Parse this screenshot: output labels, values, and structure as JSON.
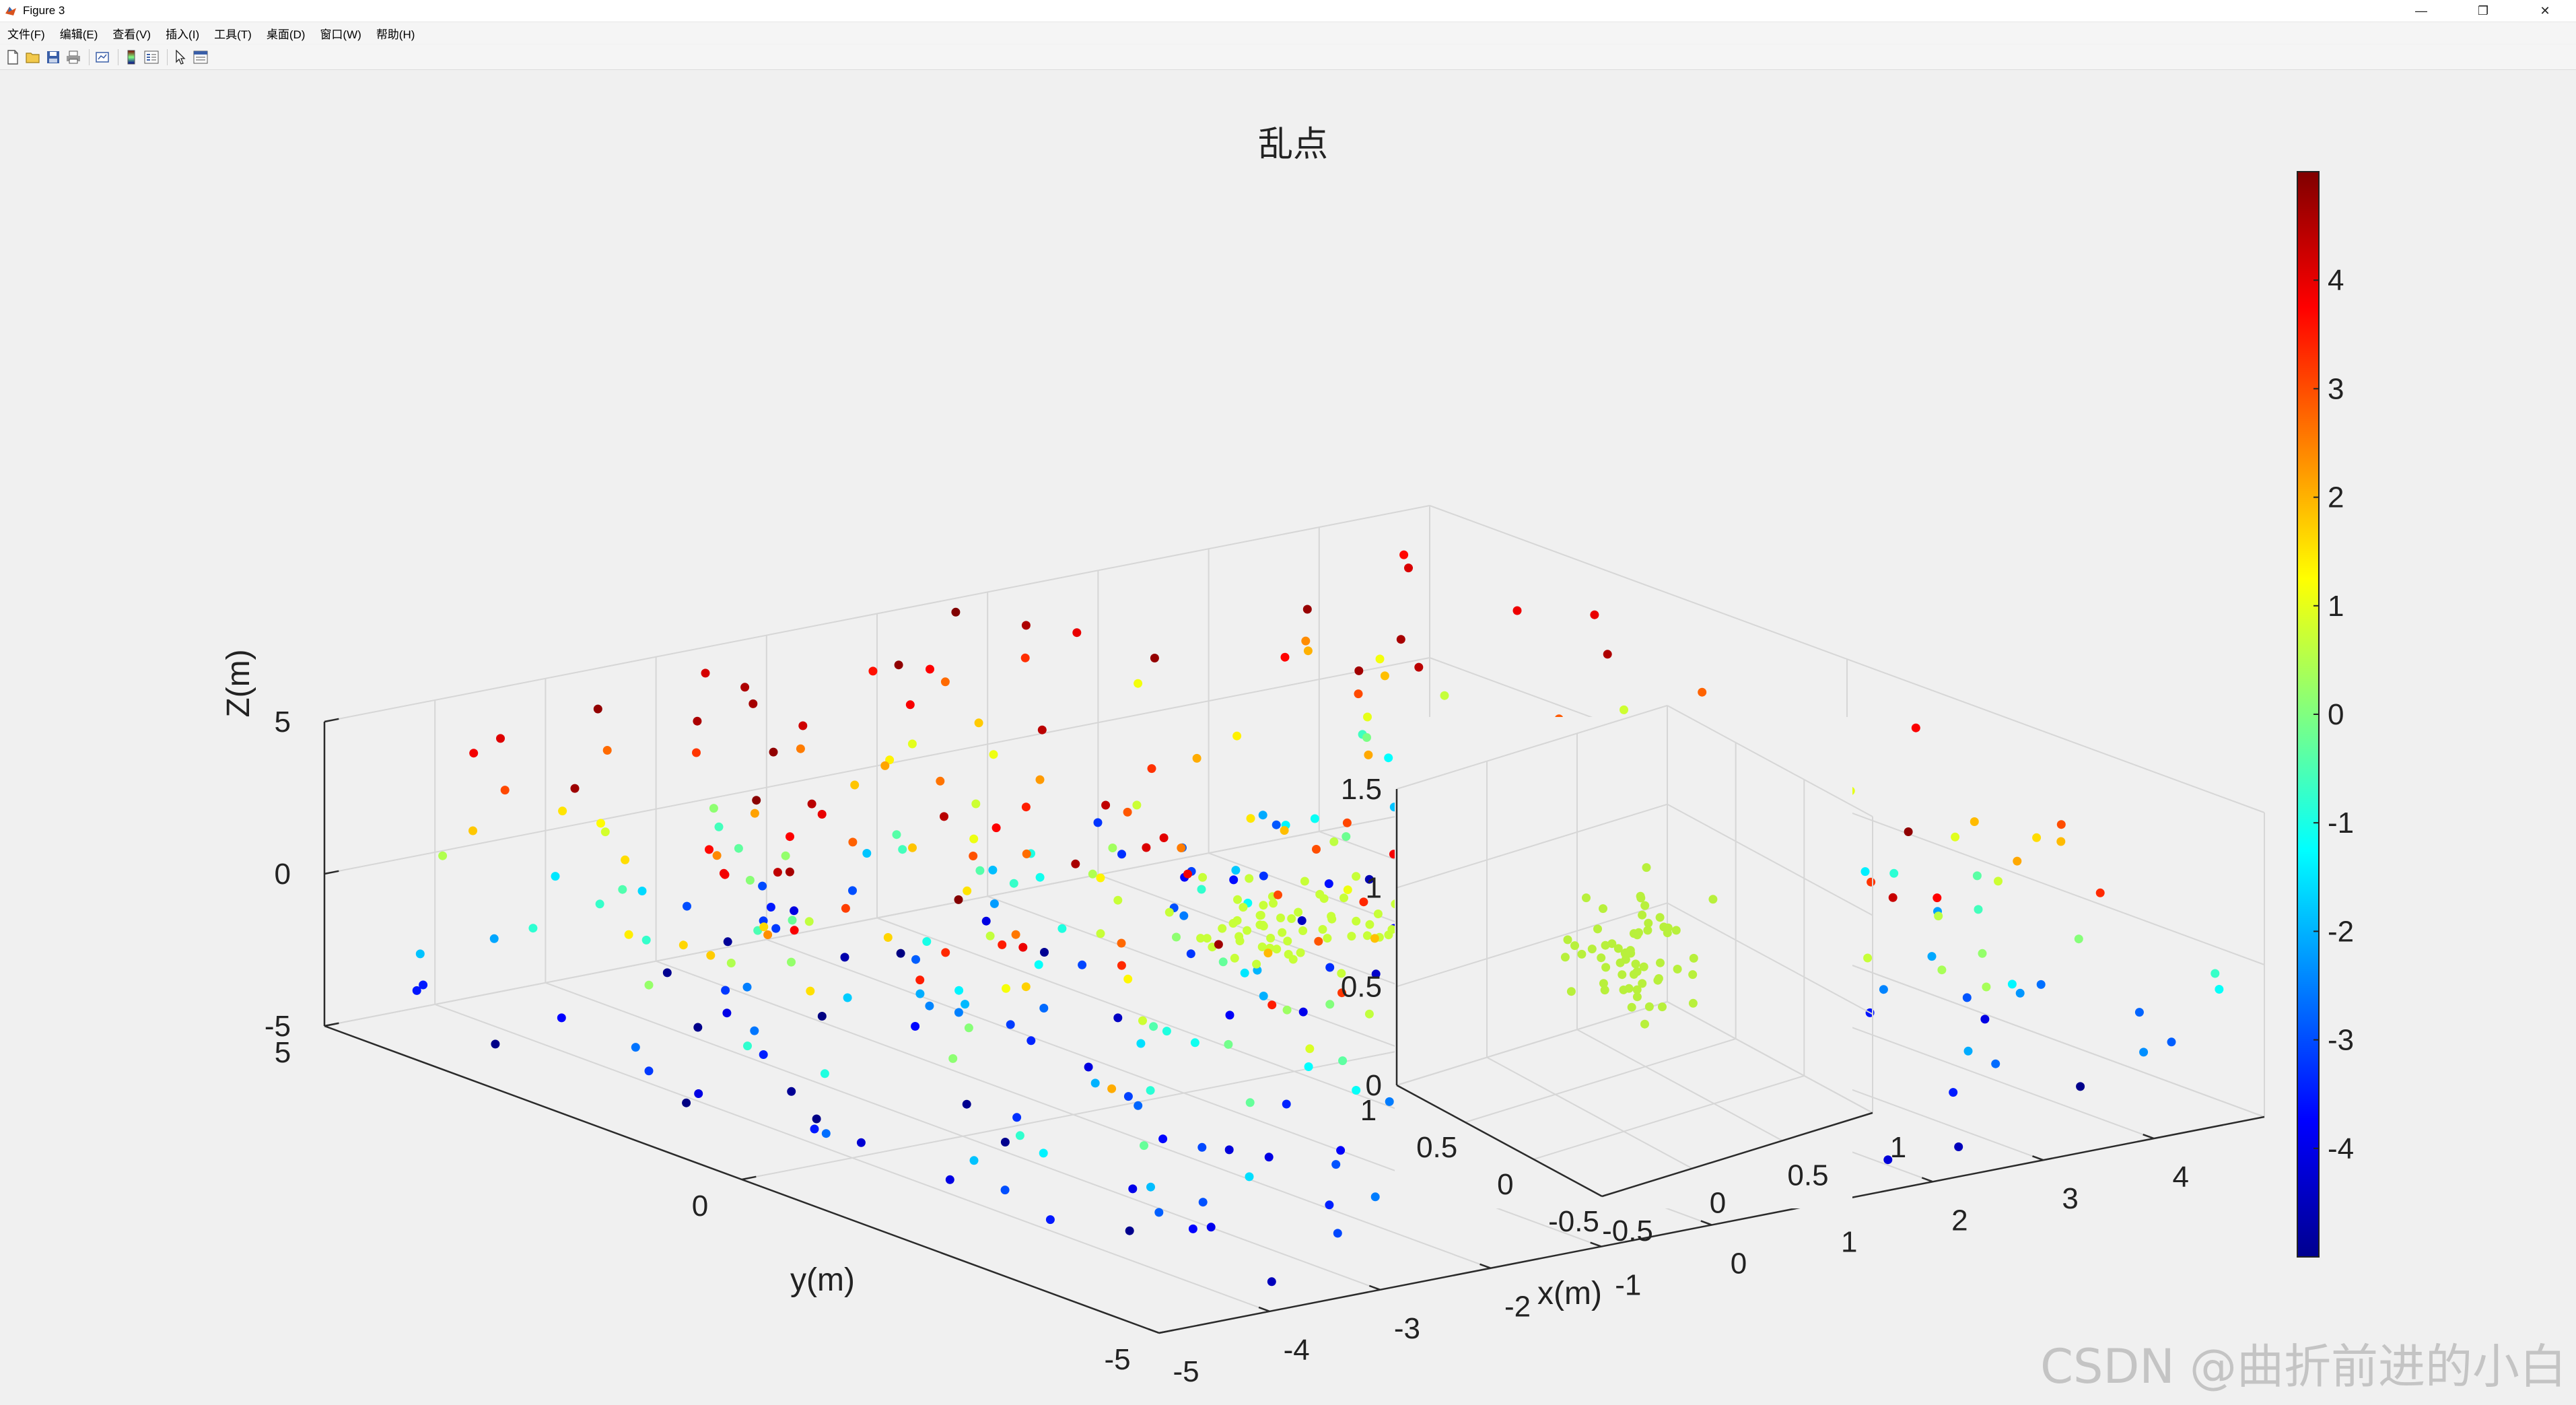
{
  "window": {
    "title": "Figure 3",
    "controls": [
      "—",
      "❐",
      "✕"
    ]
  },
  "menu": [
    "文件(F)",
    "编辑(E)",
    "查看(V)",
    "插入(I)",
    "工具(T)",
    "桌面(D)",
    "窗口(W)",
    "帮助(H)"
  ],
  "toolbar": [
    "new-figure-icon",
    "open-file-icon",
    "save-icon",
    "print-icon",
    "link-plot-icon",
    "insert-colorbar-icon",
    "insert-legend-icon",
    "edit-plot-icon",
    "property-inspector-icon"
  ],
  "watermark": "CSDN @曲折前进的小白",
  "chart_data": [
    {
      "type": "scatter3d",
      "title": "乱点",
      "xlabel": "x(m)",
      "ylabel": "y(m)",
      "zlabel": "Z(m)",
      "xlim": [
        -5,
        5
      ],
      "ylim": [
        -5,
        5
      ],
      "zlim": [
        -5,
        5
      ],
      "xticks": [
        "-5",
        "-4",
        "-3",
        "-2",
        "-1",
        "0",
        "1",
        "2",
        "3",
        "4"
      ],
      "yticks": [
        "-5",
        "0",
        "5"
      ],
      "zticks": [
        "-5",
        "0",
        "5"
      ],
      "grid": true,
      "colormap": "jet",
      "color_by": "z",
      "uniform_points": 500,
      "cluster": {
        "center": [
          0,
          0,
          0
        ],
        "points": 60,
        "spread": 0.5,
        "color_value": 0.7
      },
      "colorbar": {
        "ticks": [
          "4",
          "3",
          "2",
          "1",
          "0",
          "-1",
          "-2",
          "-3",
          "-4"
        ],
        "limits": [
          -5,
          5
        ]
      }
    },
    {
      "type": "scatter3d",
      "title": "",
      "xlim": [
        -0.5,
        1
      ],
      "ylim": [
        -0.5,
        1
      ],
      "zlim": [
        0,
        1.5
      ],
      "xticks": [
        "-0.5",
        "0",
        "0.5",
        "1"
      ],
      "yticks": [
        "-0.5",
        "0",
        "0.5",
        "1"
      ],
      "zticks": [
        "0",
        "0.5",
        "1",
        "1.5"
      ],
      "grid": true,
      "points": 60,
      "cluster_color": "#b8f03c"
    }
  ]
}
